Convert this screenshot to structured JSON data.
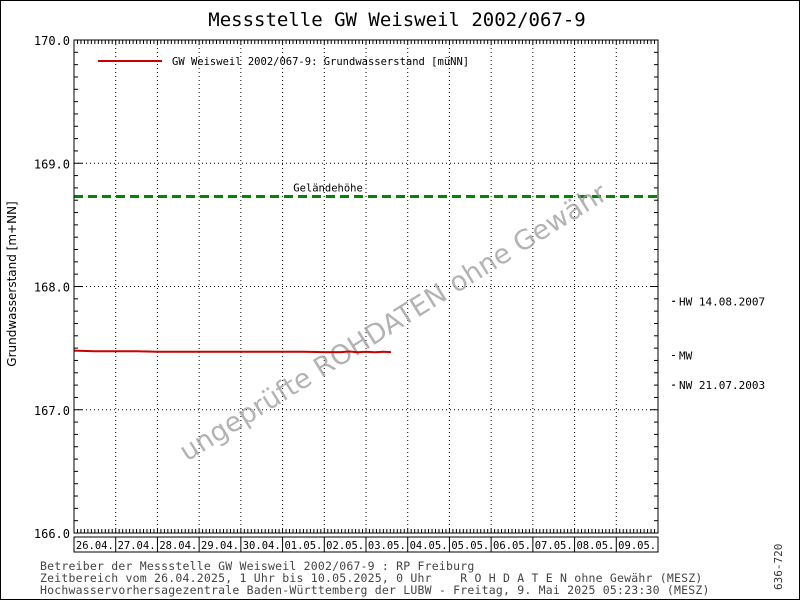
{
  "chart_data": {
    "type": "line",
    "title": "Messstelle GW Weisweil 2002/067-9",
    "ylabel": "Grundwasserstand [m+NN]",
    "ylim": [
      166.0,
      170.0
    ],
    "y_ticks": [
      "166.0",
      "167.0",
      "168.0",
      "169.0",
      "170.0"
    ],
    "y_tick_values": [
      166.0,
      167.0,
      168.0,
      169.0,
      170.0
    ],
    "x_categories": [
      "26.04.",
      "27.04.",
      "28.04.",
      "29.04.",
      "30.04.",
      "01.05.",
      "02.05.",
      "03.05.",
      "04.05.",
      "05.05.",
      "06.05.",
      "07.05.",
      "08.05.",
      "09.05."
    ],
    "legend_position": "top-left",
    "grid": true,
    "series": [
      {
        "name": "GW Weisweil 2002/067-9: Grundwasserstand  [müNN]",
        "color": "#cc0000",
        "points": [
          [
            0.0,
            167.48
          ],
          [
            0.5,
            167.475
          ],
          [
            1.0,
            167.475
          ],
          [
            1.5,
            167.475
          ],
          [
            2.0,
            167.47
          ],
          [
            2.5,
            167.47
          ],
          [
            3.0,
            167.47
          ],
          [
            3.5,
            167.47
          ],
          [
            4.0,
            167.47
          ],
          [
            4.5,
            167.47
          ],
          [
            5.0,
            167.47
          ],
          [
            5.5,
            167.47
          ],
          [
            6.0,
            167.468
          ],
          [
            6.4,
            167.468
          ],
          [
            6.6,
            167.473
          ],
          [
            6.8,
            167.466
          ],
          [
            7.0,
            167.47
          ],
          [
            7.2,
            167.466
          ],
          [
            7.4,
            167.47
          ],
          [
            7.6,
            167.468
          ]
        ]
      }
    ],
    "reference_lines": [
      {
        "label": "Geländehöhe",
        "value": 168.73,
        "color": "#008800"
      }
    ],
    "right_markers": [
      {
        "label": "HW 14.08.2007",
        "value": 167.88
      },
      {
        "label": "MW",
        "value": 167.44
      },
      {
        "label": "NW 21.07.2003",
        "value": 167.2
      }
    ],
    "watermark": "ungeprüfte ROHDATEN ohne Gewähr"
  },
  "footer": {
    "line1": "Betreiber der Messstelle GW Weisweil 2002/067-9 : RP Freiburg",
    "line2": "Zeitbereich vom 26.04.2025, 1 Uhr bis 10.05.2025, 0 Uhr    R O H D A T E N ohne Gewähr (MESZ)",
    "line3": "Hochwasservorhersagezentrale Baden-Württemberg der LUBW - Freitag, 9. Mai 2025 05:23:30 (MESZ)"
  },
  "code": "636-720"
}
